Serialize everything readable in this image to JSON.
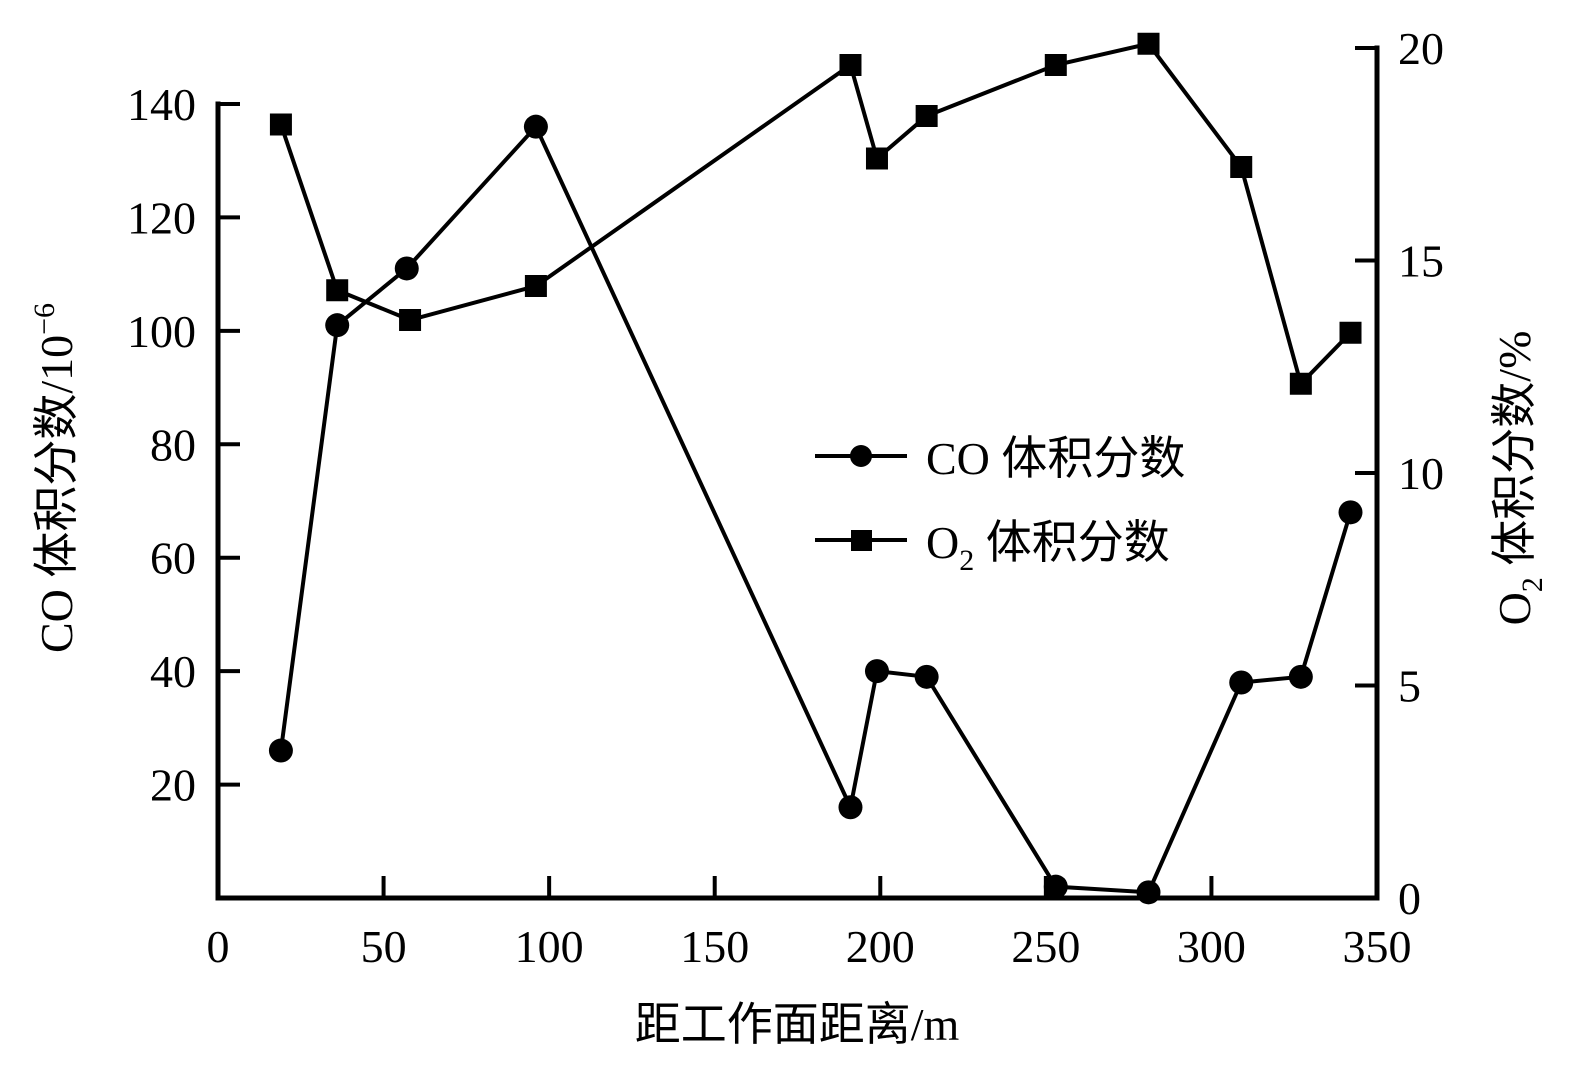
{
  "chart_data": {
    "type": "line",
    "title": "",
    "xlabel": "距工作面距离/m",
    "ylabel_left": "CO 体积分数/10⁻⁶",
    "ylabel_right": "O₂ 体积分数/%",
    "xlim": [
      0,
      350
    ],
    "ylim_left": [
      0,
      140
    ],
    "ylim_right": [
      0,
      20
    ],
    "x_ticks": [
      0,
      50,
      100,
      150,
      200,
      250,
      300,
      350
    ],
    "y_left_ticks": [
      20,
      40,
      60,
      80,
      100,
      120,
      140
    ],
    "y_right_ticks": [
      0,
      5,
      10,
      15,
      20
    ],
    "grid": false,
    "legend_position": "center-right",
    "series": [
      {
        "name": "CO 体积分数",
        "axis": "left",
        "marker": "circle",
        "x": [
          19,
          36,
          57,
          96,
          191,
          199,
          214,
          253,
          281,
          309,
          327,
          342
        ],
        "values": [
          26,
          101,
          111,
          136,
          16,
          40,
          39,
          2,
          1,
          38,
          39,
          68
        ]
      },
      {
        "name": "O₂ 体积分数",
        "axis": "right",
        "marker": "square",
        "x": [
          19,
          36,
          58,
          96,
          191,
          199,
          214,
          253,
          281,
          309,
          327,
          342
        ],
        "values": [
          18.2,
          14.3,
          13.6,
          14.4,
          19.6,
          17.4,
          18.4,
          19.6,
          20.1,
          17.2,
          12.1,
          13.3
        ]
      }
    ]
  },
  "axes": {
    "x_title_main": "距工作面距离/m",
    "y_left_title_main": "CO 体积分数/10",
    "y_left_title_sup": "−6",
    "y_right_title_pre": "O",
    "y_right_title_sub": "2",
    "y_right_title_post": " 体积分数/%",
    "x_tick_labels": [
      "0",
      "50",
      "100",
      "150",
      "200",
      "250",
      "300",
      "350"
    ],
    "y_left_tick_labels": [
      "20",
      "40",
      "60",
      "80",
      "100",
      "120",
      "140"
    ],
    "y_right_tick_labels": [
      "0",
      "5",
      "10",
      "15",
      "20"
    ]
  },
  "legend": {
    "co_label": "CO 体积分数",
    "o2_label_pre": "O",
    "o2_label_sub": "2",
    "o2_label_post": " 体积分数"
  },
  "colors": {
    "ink": "#000000",
    "background": "#ffffff"
  }
}
